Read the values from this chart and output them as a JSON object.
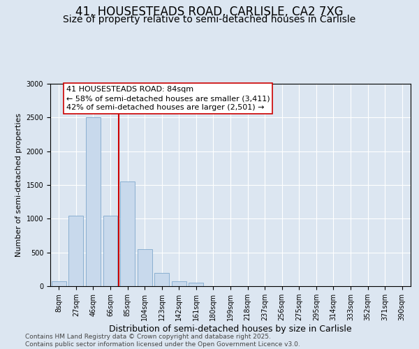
{
  "title": "41, HOUSESTEADS ROAD, CARLISLE, CA2 7XG",
  "subtitle": "Size of property relative to semi-detached houses in Carlisle",
  "xlabel": "Distribution of semi-detached houses by size in Carlisle",
  "ylabel": "Number of semi-detached properties",
  "categories": [
    "8sqm",
    "27sqm",
    "46sqm",
    "66sqm",
    "85sqm",
    "104sqm",
    "123sqm",
    "142sqm",
    "161sqm",
    "180sqm",
    "199sqm",
    "218sqm",
    "237sqm",
    "256sqm",
    "275sqm",
    "295sqm",
    "314sqm",
    "333sqm",
    "352sqm",
    "371sqm",
    "390sqm"
  ],
  "values": [
    75,
    1050,
    2500,
    1050,
    1550,
    550,
    200,
    75,
    50,
    0,
    0,
    0,
    0,
    0,
    0,
    0,
    0,
    0,
    0,
    0,
    0
  ],
  "bar_color": "#c8d9ec",
  "bar_edge_color": "#7fa8cc",
  "vline_color": "#cc0000",
  "vline_index": 3.5,
  "annotation_text": "41 HOUSESTEADS ROAD: 84sqm\n← 58% of semi-detached houses are smaller (3,411)\n42% of semi-detached houses are larger (2,501) →",
  "annotation_box_facecolor": "#ffffff",
  "annotation_box_edgecolor": "#cc0000",
  "ylim": [
    0,
    3000
  ],
  "yticks": [
    0,
    500,
    1000,
    1500,
    2000,
    2500,
    3000
  ],
  "background_color": "#dce6f1",
  "footer_text": "Contains HM Land Registry data © Crown copyright and database right 2025.\nContains public sector information licensed under the Open Government Licence v3.0.",
  "title_fontsize": 12,
  "subtitle_fontsize": 10,
  "annotation_fontsize": 8,
  "footer_fontsize": 6.5,
  "ylabel_fontsize": 8,
  "xlabel_fontsize": 9,
  "tick_fontsize": 7
}
